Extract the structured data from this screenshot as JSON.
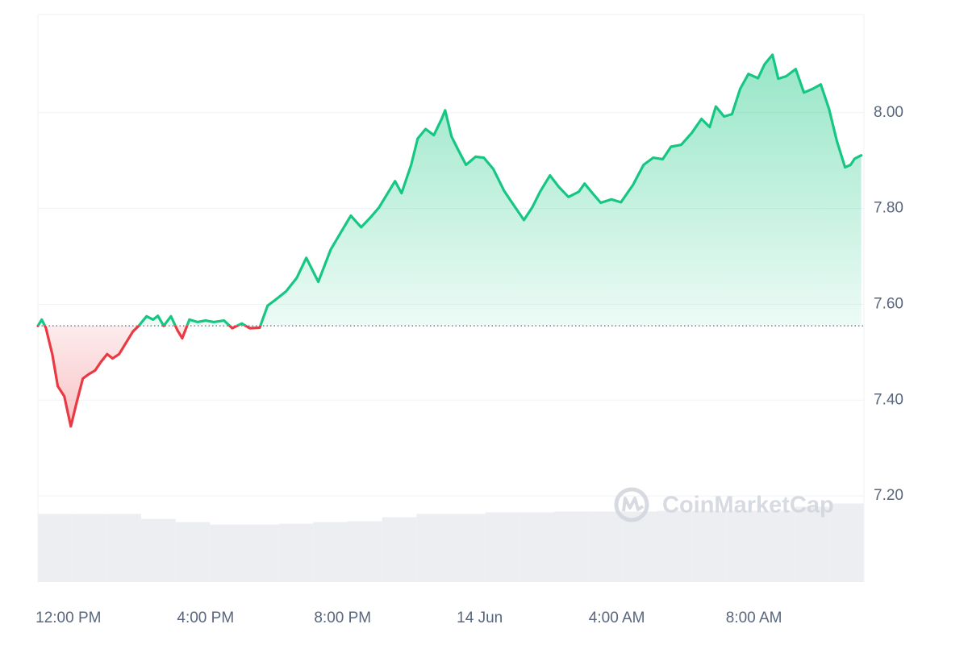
{
  "chart_data": {
    "type": "line",
    "x": [
      -0.89,
      -0.78,
      -0.66,
      -0.47,
      -0.31,
      -0.12,
      0.07,
      0.24,
      0.42,
      0.59,
      0.78,
      0.94,
      1.13,
      1.29,
      1.48,
      1.65,
      1.88,
      2.05,
      2.28,
      2.47,
      2.61,
      2.78,
      2.99,
      3.18,
      3.32,
      3.53,
      3.76,
      4.0,
      4.24,
      4.54,
      4.78,
      5.06,
      5.29,
      5.58,
      5.81,
      6.05,
      6.35,
      6.66,
      6.94,
      7.29,
      7.65,
      7.93,
      8.24,
      8.54,
      8.82,
      9.06,
      9.29,
      9.53,
      9.72,
      10.0,
      10.19,
      10.42,
      10.66,
      10.89,
      10.99,
      11.18,
      11.36,
      11.6,
      11.88,
      12.12,
      12.4,
      12.71,
      12.99,
      13.29,
      13.53,
      13.76,
      14.05,
      14.31,
      14.59,
      14.89,
      15.06,
      15.29,
      15.53,
      15.84,
      16.12,
      16.47,
      16.78,
      17.06,
      17.34,
      17.58,
      17.88,
      18.19,
      18.47,
      18.71,
      18.89,
      19.13,
      19.36,
      19.6,
      19.84,
      20.12,
      20.31,
      20.54,
      20.71,
      20.94,
      21.22,
      21.46,
      21.72,
      21.95,
      22.19,
      22.42,
      22.66,
      22.82,
      22.94,
      23.13
    ],
    "values": [
      7.555,
      7.568,
      7.551,
      7.496,
      7.429,
      7.408,
      7.345,
      7.395,
      7.445,
      7.454,
      7.462,
      7.479,
      7.496,
      7.487,
      7.496,
      7.516,
      7.543,
      7.555,
      7.575,
      7.568,
      7.576,
      7.555,
      7.575,
      7.546,
      7.529,
      7.568,
      7.563,
      7.566,
      7.563,
      7.566,
      7.55,
      7.56,
      7.55,
      7.551,
      7.597,
      7.61,
      7.627,
      7.655,
      7.697,
      7.647,
      7.714,
      7.748,
      7.785,
      7.761,
      7.782,
      7.802,
      7.829,
      7.857,
      7.832,
      7.891,
      7.946,
      7.966,
      7.953,
      7.987,
      8.005,
      7.95,
      7.924,
      7.891,
      7.908,
      7.906,
      7.882,
      7.837,
      7.807,
      7.776,
      7.802,
      7.835,
      7.869,
      7.845,
      7.824,
      7.835,
      7.852,
      7.832,
      7.812,
      7.819,
      7.813,
      7.849,
      7.891,
      7.906,
      7.903,
      7.929,
      7.933,
      7.958,
      7.987,
      7.97,
      8.013,
      7.992,
      7.997,
      8.05,
      8.081,
      8.072,
      8.101,
      8.121,
      8.071,
      8.076,
      8.091,
      8.042,
      8.05,
      8.059,
      8.008,
      7.941,
      7.886,
      7.891,
      7.904,
      7.911
    ],
    "color": "#16c784",
    "down_color": "#ea3943",
    "reference_line": 7.555,
    "xlim": [
      -0.89,
      23.21
    ],
    "ylim": [
      7.02,
      8.205
    ],
    "xticks": [
      {
        "value": 0,
        "label": "12:00 PM"
      },
      {
        "value": 4,
        "label": "4:00 PM"
      },
      {
        "value": 8,
        "label": "8:00 PM"
      },
      {
        "value": 12,
        "label": "14 Jun"
      },
      {
        "value": 16,
        "label": "4:00 AM"
      },
      {
        "value": 20,
        "label": "8:00 AM"
      }
    ],
    "yticks": [
      {
        "value": 8,
        "label": "8.00"
      },
      {
        "value": 7.8,
        "label": "7.80"
      },
      {
        "value": 7.6,
        "label": "7.60"
      },
      {
        "value": 7.4,
        "label": "7.40"
      },
      {
        "value": 7.2,
        "label": "7.20"
      }
    ],
    "grid": true,
    "volume": {
      "color": "#eceef2",
      "ylim": [
        0,
        700
      ],
      "values": [
        84,
        84,
        84,
        78,
        74,
        71,
        71,
        72,
        74,
        75,
        80,
        84,
        84,
        86,
        86,
        87,
        87,
        87,
        88,
        88,
        88,
        88,
        93,
        97
      ]
    },
    "watermark": "CoinMarketCap"
  }
}
